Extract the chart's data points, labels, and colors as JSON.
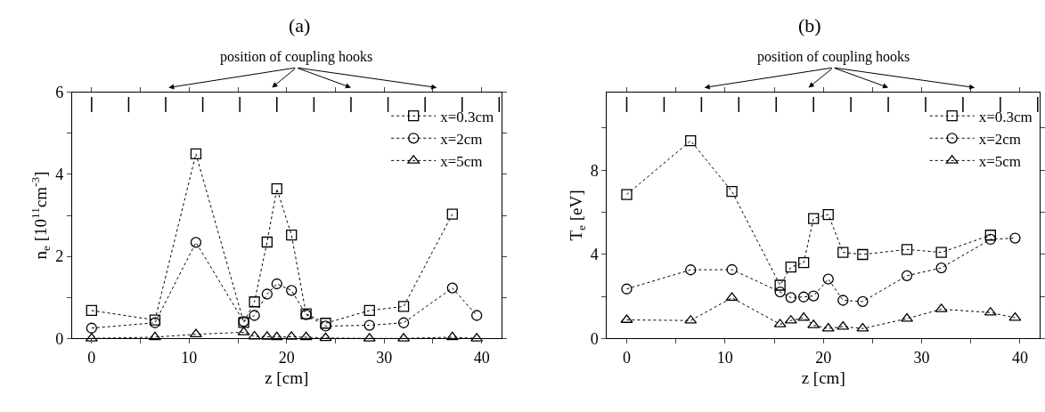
{
  "chart_data": [
    {
      "type": "line",
      "title": "(a)",
      "xlabel": "z [cm]",
      "ylabel": "n$_{e}$ [10$^{11}$cm$^{-3}$]",
      "annotations": [
        "position of coupling hooks"
      ],
      "x": [
        0,
        6.5,
        10.7,
        15.6,
        16.7,
        18,
        19,
        20.5,
        22,
        24,
        28.5,
        32,
        37,
        39.5
      ],
      "series": [
        {
          "name": "x=0.3cm",
          "color": "#000000",
          "marker": "square",
          "values": [
            0.68,
            0.45,
            4.5,
            0.39,
            0.89,
            2.35,
            3.65,
            2.52,
            0.6,
            0.37,
            0.68,
            0.78,
            3.03,
            null
          ]
        },
        {
          "name": "x=2cm",
          "color": "#000000",
          "marker": "circle",
          "values": [
            0.25,
            0.38,
            2.34,
            0.41,
            0.56,
            1.08,
            1.33,
            1.17,
            0.58,
            0.3,
            0.32,
            0.38,
            1.23,
            0.56
          ]
        },
        {
          "name": "x=5cm",
          "color": "#000000",
          "marker": "triangle",
          "values": [
            0,
            0.03,
            0.1,
            0.15,
            0.05,
            0.04,
            0.03,
            0.04,
            0.03,
            0.01,
            0,
            0,
            0.03,
            0
          ]
        }
      ],
      "xlim": [
        -2,
        42
      ],
      "xticks": [
        0,
        {
          "value": 5,
          "label": null
        },
        10,
        {
          "value": 15,
          "label": null
        },
        20,
        {
          "value": 25,
          "label": null
        },
        30,
        {
          "value": 35,
          "label": null
        },
        40
      ],
      "ylim": [
        0,
        6
      ],
      "yticks": [
        0,
        {
          "value": 1,
          "label": null
        },
        2,
        {
          "value": 3,
          "label": null
        },
        4,
        {
          "value": 5,
          "label": null
        },
        6
      ],
      "legend": "top right",
      "line_style": "dotted"
    },
    {
      "type": "line",
      "title": "(b)",
      "xlabel": "z [cm]",
      "ylabel": "T$_{e}$ [eV]",
      "annotations": [
        "position of coupling hooks"
      ],
      "x": [
        0,
        6.5,
        10.7,
        15.6,
        16.7,
        18,
        19,
        20.5,
        22,
        24,
        28.5,
        32,
        37,
        39.5
      ],
      "series": [
        {
          "name": "x=0.3cm",
          "color": "#000000",
          "marker": "square",
          "values": [
            6.84,
            9.4,
            6.99,
            2.53,
            3.39,
            3.6,
            5.7,
            5.89,
            4.09,
            3.99,
            4.23,
            4.09,
            4.91,
            null
          ]
        },
        {
          "name": "x=2cm",
          "color": "#000000",
          "marker": "circle",
          "values": [
            2.35,
            3.26,
            3.27,
            2.21,
            1.94,
            1.97,
            2.02,
            2.82,
            1.81,
            1.75,
            2.98,
            3.35,
            4.71,
            4.77
          ]
        },
        {
          "name": "x=5cm",
          "color": "#000000",
          "marker": "triangle",
          "values": [
            0.88,
            0.85,
            1.93,
            0.67,
            0.85,
            0.98,
            0.63,
            0.47,
            0.56,
            0.47,
            0.94,
            1.39,
            1.23,
            0.98
          ]
        }
      ],
      "xlim": [
        -2,
        42
      ],
      "xticks": [
        0,
        {
          "value": 5,
          "label": null
        },
        10,
        {
          "value": 15,
          "label": null
        },
        20,
        {
          "value": 25,
          "label": null
        },
        30,
        {
          "value": 35,
          "label": null
        },
        40
      ],
      "ylim": [
        0,
        11.7
      ],
      "yticks": [
        0,
        {
          "value": 2,
          "label": null
        },
        4,
        {
          "value": 6,
          "label": null
        },
        8,
        {
          "value": 10,
          "label": null
        }
      ],
      "legend": "top right",
      "line_style": "dotted"
    }
  ]
}
